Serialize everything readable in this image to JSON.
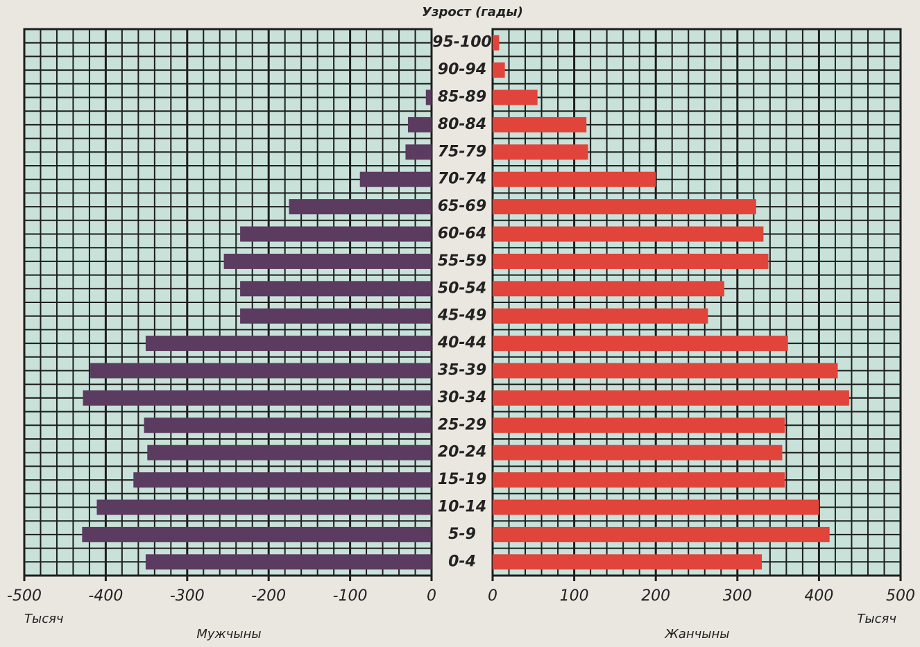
{
  "chart_data": [
    {
      "type": "bar",
      "orientation": "horizontal",
      "y_label": "Узрост (гады)",
      "categories": [
        "95-100",
        "90-94",
        "85-89",
        "80-84",
        "75-79",
        "70-74",
        "65-69",
        "60-64",
        "55-59",
        "50-54",
        "45-49",
        "40-44",
        "35-39",
        "30-34",
        "25-29",
        "20-24",
        "15-19",
        "10-14",
        "5-9",
        "0-4"
      ],
      "values": [
        0,
        0,
        -7,
        -29,
        -32,
        -88,
        -175,
        -235,
        -255,
        -235,
        -235,
        -351,
        -419,
        -428,
        -353,
        -349,
        -366,
        -411,
        -429,
        -351
      ],
      "color": "#5b3b60",
      "x_label": "Мужчыны",
      "x_unit": "Тысяч",
      "xlim": [
        -500,
        0
      ],
      "xticks": [
        -500,
        -400,
        -300,
        -200,
        -100,
        0
      ],
      "grid": true
    },
    {
      "type": "bar",
      "orientation": "horizontal",
      "values": [
        8,
        15,
        55,
        115,
        117,
        200,
        323,
        332,
        338,
        284,
        264,
        362,
        423,
        437,
        358,
        355,
        358,
        400,
        413,
        330
      ],
      "color": "#e0443a",
      "x_label": "Жанчыны",
      "x_unit": "Тысяч",
      "xlim": [
        0,
        500
      ],
      "xticks": [
        0,
        100,
        200,
        300,
        400,
        500
      ],
      "grid": true
    }
  ]
}
